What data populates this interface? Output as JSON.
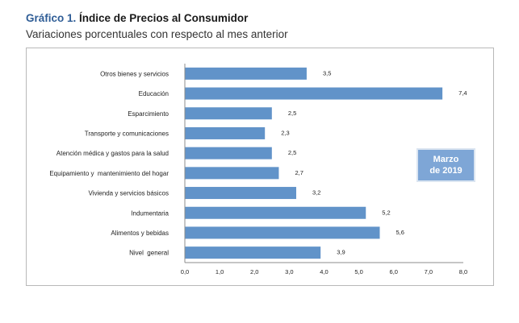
{
  "header": {
    "title_lead": "Gráfico 1.",
    "title_rest": " Índice de Precios al Consumidor",
    "subtitle": "Variaciones porcentuales con respecto al mes anterior"
  },
  "badge": {
    "line1": "Marzo",
    "line2": "de 2019"
  },
  "colors": {
    "bar": "#6193c9",
    "title_accent": "#2f5d96",
    "badge_bg": "#7ea6d6"
  },
  "chart_data": {
    "type": "bar",
    "orientation": "horizontal",
    "title": "Gráfico 1. Índice de Precios al Consumidor",
    "subtitle": "Variaciones porcentuales con respecto al mes anterior",
    "categories": [
      "Otros bienes y servicios",
      "Educación",
      "Esparcimiento",
      "Transporte y comunicaciones",
      "Atención médica y gastos para la salud",
      "Equipamiento y  mantenimiento del hogar",
      "Vivienda y servicios básicos",
      "Indumentaria",
      "Alimentos y bebidas",
      "Nivel  general"
    ],
    "values": [
      3.5,
      7.4,
      2.5,
      2.3,
      2.5,
      2.7,
      3.2,
      5.2,
      5.6,
      3.9
    ],
    "value_labels": [
      "3,5",
      "7,4",
      "2,5",
      "2,3",
      "2,5",
      "2,7",
      "3,2",
      "5,2",
      "5,6",
      "3,9"
    ],
    "xlabel": "",
    "ylabel": "",
    "xlim": [
      0,
      8
    ],
    "xticks": [
      0,
      1,
      2,
      3,
      4,
      5,
      6,
      7,
      8
    ],
    "xtick_labels": [
      "0,0",
      "1,0",
      "2,0",
      "3,0",
      "4,0",
      "5,0",
      "6,0",
      "7,0",
      "8,0"
    ],
    "grid": false,
    "legend": "none",
    "annotation": "Marzo de 2019"
  }
}
